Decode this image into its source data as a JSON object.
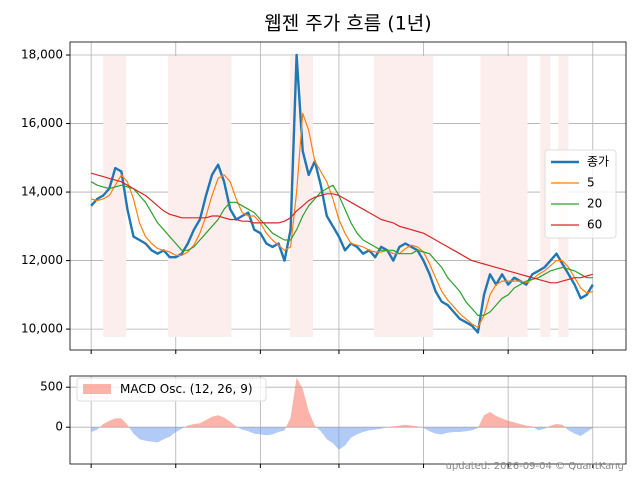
{
  "chart_data": [
    {
      "type": "line",
      "title": "웹젠 주가 흐름 (1년)",
      "x": [
        0,
        1,
        2,
        3,
        4,
        5,
        6,
        7,
        8,
        9,
        10,
        11,
        12,
        13,
        14,
        15,
        16,
        17,
        18,
        19,
        20,
        21,
        22,
        23,
        24,
        25,
        26,
        27,
        28,
        29,
        30,
        31,
        32,
        33,
        34,
        35,
        36,
        37,
        38,
        39,
        40,
        41,
        42,
        43,
        44,
        45,
        46,
        47,
        48,
        49,
        50,
        51,
        52,
        53,
        54,
        55,
        56,
        57,
        58,
        59,
        60,
        61,
        62,
        63,
        64,
        65,
        66,
        67,
        68,
        69,
        70,
        71,
        72,
        73,
        74,
        75,
        76,
        77,
        78,
        79,
        80,
        81,
        82,
        83
      ],
      "xlim": [
        -3.5,
        88.5
      ],
      "xticks": [
        0,
        14,
        28,
        41,
        55,
        69,
        83
      ],
      "ylim": [
        9390,
        18380
      ],
      "yticks": [
        {
          "value": 10000,
          "label": "10,000"
        },
        {
          "value": 12000,
          "label": "12,000"
        },
        {
          "value": 14000,
          "label": "14,000"
        },
        {
          "value": 16000,
          "label": "16,000"
        },
        {
          "value": 18000,
          "label": "18,000"
        }
      ],
      "grid": true,
      "legend": "right",
      "spans": [
        [
          2.0,
          5.8
        ],
        [
          12.7,
          23.2
        ],
        [
          32.9,
          36.7
        ],
        [
          46.8,
          56.6
        ],
        [
          64.4,
          72.2
        ],
        [
          74.3,
          76.0
        ],
        [
          77.3,
          79.0
        ]
      ],
      "span_color": "#fdeeee",
      "series": [
        {
          "name": "종가",
          "color": "#1f77b4",
          "width": 2,
          "values": [
            13600,
            13800,
            13900,
            14100,
            14700,
            14600,
            13500,
            12700,
            12600,
            12500,
            12300,
            12200,
            12300,
            12100,
            12100,
            12200,
            12500,
            12900,
            13200,
            13900,
            14500,
            14800,
            14300,
            13500,
            13200,
            13300,
            13400,
            12900,
            12800,
            12500,
            12400,
            12500,
            12000,
            12900,
            18000,
            15200,
            14500,
            14900,
            14200,
            13300,
            13000,
            12700,
            12300,
            12500,
            12400,
            12200,
            12300,
            12100,
            12400,
            12300,
            12000,
            12400,
            12500,
            12400,
            12300,
            12000,
            11600,
            11100,
            10800,
            10700,
            10500,
            10300,
            10200,
            10100,
            9900,
            11000,
            11600,
            11300,
            11600,
            11300,
            11500,
            11400,
            11300,
            11600,
            11700,
            11800,
            12000,
            12200,
            11900,
            11600,
            11300,
            10900,
            11000,
            11300
          ]
        },
        {
          "name": "5",
          "color": "#ff7f0e",
          "width": 1,
          "values": [
            13800,
            13750,
            13800,
            13900,
            14200,
            14500,
            14300,
            13800,
            13100,
            12700,
            12500,
            12350,
            12300,
            12250,
            12150,
            12150,
            12250,
            12450,
            12800,
            13300,
            13900,
            14400,
            14500,
            14300,
            13800,
            13400,
            13300,
            13300,
            13100,
            12800,
            12600,
            12450,
            12300,
            12400,
            14000,
            16300,
            15800,
            14900,
            14600,
            14300,
            13800,
            13200,
            12800,
            12500,
            12450,
            12400,
            12300,
            12250,
            12250,
            12300,
            12200,
            12200,
            12350,
            12450,
            12400,
            12250,
            11900,
            11500,
            11100,
            10850,
            10650,
            10450,
            10300,
            10150,
            10050,
            10400,
            11000,
            11300,
            11400,
            11400,
            11400,
            11400,
            11350,
            11450,
            11600,
            11700,
            11850,
            12000,
            12000,
            11800,
            11500,
            11200,
            11050,
            11100
          ]
        },
        {
          "name": "20",
          "color": "#2ca02c",
          "width": 1,
          "values": [
            14300,
            14200,
            14150,
            14100,
            14150,
            14200,
            14150,
            14100,
            13900,
            13700,
            13400,
            13100,
            12900,
            12700,
            12500,
            12300,
            12300,
            12400,
            12600,
            12800,
            13000,
            13200,
            13500,
            13700,
            13700,
            13600,
            13500,
            13400,
            13200,
            13000,
            12800,
            12700,
            12600,
            12600,
            12900,
            13300,
            13600,
            13800,
            14000,
            14100,
            14200,
            13900,
            13500,
            13100,
            12800,
            12600,
            12500,
            12400,
            12300,
            12300,
            12300,
            12200,
            12200,
            12200,
            12300,
            12250,
            12200,
            12000,
            11800,
            11500,
            11300,
            11100,
            10800,
            10600,
            10400,
            10400,
            10500,
            10700,
            10900,
            11000,
            11200,
            11300,
            11400,
            11450,
            11500,
            11600,
            11700,
            11750,
            11800,
            11750,
            11700,
            11600,
            11500,
            11500
          ]
        },
        {
          "name": "60",
          "color": "#d62728",
          "width": 1,
          "values": [
            14550,
            14500,
            14450,
            14400,
            14350,
            14300,
            14200,
            14100,
            14000,
            13900,
            13750,
            13600,
            13450,
            13350,
            13300,
            13250,
            13250,
            13250,
            13250,
            13250,
            13300,
            13300,
            13250,
            13200,
            13200,
            13150,
            13150,
            13100,
            13100,
            13100,
            13100,
            13100,
            13150,
            13250,
            13450,
            13600,
            13750,
            13850,
            13900,
            13950,
            13950,
            13900,
            13800,
            13700,
            13600,
            13500,
            13400,
            13300,
            13200,
            13150,
            13100,
            13000,
            12950,
            12900,
            12850,
            12800,
            12700,
            12600,
            12500,
            12400,
            12300,
            12200,
            12100,
            12000,
            11950,
            11900,
            11850,
            11800,
            11750,
            11700,
            11650,
            11600,
            11550,
            11500,
            11450,
            11400,
            11350,
            11350,
            11400,
            11450,
            11500,
            11500,
            11550,
            11600
          ]
        }
      ]
    },
    {
      "type": "area",
      "ylim": [
        -460,
        640
      ],
      "yticks": [
        0,
        500
      ],
      "grid": true,
      "legend": "upper left",
      "series": [
        {
          "name": "MACD Osc. (12, 26, 9)",
          "color": "#fa8072",
          "negative_color": "#6495ed",
          "values": [
            -60,
            -30,
            40,
            80,
            110,
            110,
            30,
            -80,
            -150,
            -170,
            -180,
            -190,
            -150,
            -120,
            -60,
            -20,
            20,
            40,
            50,
            90,
            130,
            150,
            120,
            70,
            10,
            -30,
            -50,
            -80,
            -90,
            -100,
            -90,
            -60,
            -40,
            120,
            620,
            480,
            200,
            20,
            -50,
            -150,
            -200,
            -280,
            -230,
            -130,
            -90,
            -60,
            -40,
            -30,
            -20,
            0,
            10,
            20,
            30,
            20,
            10,
            -10,
            -50,
            -80,
            -90,
            -70,
            -60,
            -60,
            -50,
            -40,
            -10,
            150,
            190,
            140,
            110,
            80,
            60,
            40,
            20,
            10,
            -40,
            -20,
            20,
            40,
            30,
            -40,
            -80,
            -110,
            -60,
            -10
          ]
        }
      ]
    }
  ],
  "footer": "updated: 2026-09-04 © QuantKang"
}
